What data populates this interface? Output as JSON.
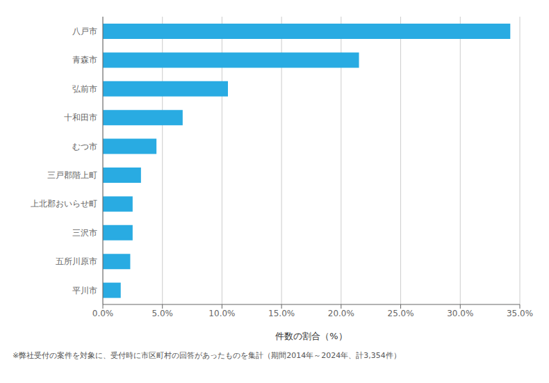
{
  "chart_data": {
    "type": "bar",
    "orientation": "horizontal",
    "categories": [
      "八戸市",
      "青森市",
      "弘前市",
      "十和田市",
      "むつ市",
      "三戸郡階上町",
      "上北郡おいらせ町",
      "三沢市",
      "五所川原市",
      "平川市"
    ],
    "values": [
      34.2,
      21.5,
      10.5,
      6.7,
      4.5,
      3.2,
      2.5,
      2.5,
      2.3,
      1.5
    ],
    "color": "#29ABE2",
    "xlabel": "件数の割合（%）",
    "xlim": [
      0,
      35.0
    ],
    "xticks": [
      {
        "value": 0,
        "label": "0.0%"
      },
      {
        "value": 5.0,
        "label": "5.0%"
      },
      {
        "value": 10.0,
        "label": "10.0%"
      },
      {
        "value": 15.0,
        "label": "15.0%"
      },
      {
        "value": 20.0,
        "label": "20.0%"
      },
      {
        "value": 25.0,
        "label": "25.0%"
      },
      {
        "value": 30.0,
        "label": "30.0%"
      },
      {
        "value": 35.0,
        "label": "35.0%"
      }
    ],
    "grid": true,
    "footnote": "※弊社受付の案件を対象に、受付時に市区町村の回答があったものを集計（期間2014年～2024年、計3,354件）"
  }
}
